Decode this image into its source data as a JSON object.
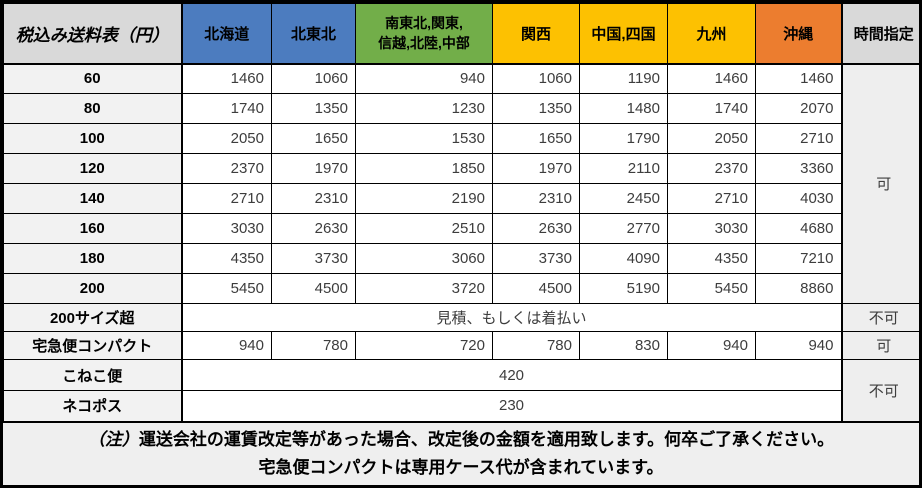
{
  "chart_data": {
    "type": "table",
    "title": "税込み送料表（円）",
    "region_columns": [
      {
        "label": "北海道",
        "bg": "#4C7CBF"
      },
      {
        "label": "北東北",
        "bg": "#4C7CBF"
      },
      {
        "label": "南東北,関東,\n信越,北陸,中部",
        "bg": "#72AE49"
      },
      {
        "label": "関西",
        "bg": "#FDC101"
      },
      {
        "label": "中国,四国",
        "bg": "#FDC101"
      },
      {
        "label": "九州",
        "bg": "#FDC101"
      },
      {
        "label": "沖縄",
        "bg": "#EC7D2F"
      }
    ],
    "time_column_label": "時間指定",
    "size_rows": [
      {
        "label": "60",
        "values": [
          1460,
          1060,
          940,
          1060,
          1190,
          1460,
          1460
        ]
      },
      {
        "label": "80",
        "values": [
          1740,
          1350,
          1230,
          1350,
          1480,
          1740,
          2070
        ]
      },
      {
        "label": "100",
        "values": [
          2050,
          1650,
          1530,
          1650,
          1790,
          2050,
          2710
        ]
      },
      {
        "label": "120",
        "values": [
          2370,
          1970,
          1850,
          1970,
          2110,
          2370,
          3360
        ]
      },
      {
        "label": "140",
        "values": [
          2710,
          2310,
          2190,
          2310,
          2450,
          2710,
          4030
        ]
      },
      {
        "label": "160",
        "values": [
          3030,
          2630,
          2510,
          2630,
          2770,
          3030,
          4680
        ]
      },
      {
        "label": "180",
        "values": [
          4350,
          3730,
          3060,
          3730,
          4090,
          4350,
          7210
        ]
      },
      {
        "label": "200",
        "values": [
          5450,
          4500,
          3720,
          4500,
          5190,
          5450,
          8860
        ]
      }
    ],
    "size_rows_time": "可",
    "special_rows": [
      {
        "label": "200サイズ超",
        "merged_value": "見積、もしくは着払い",
        "time": "不可",
        "time_rowspan": 1,
        "short": true
      },
      {
        "label": "宅急便コンパクト",
        "values": [
          940,
          780,
          720,
          780,
          830,
          940,
          940
        ],
        "time": "可",
        "time_rowspan": 1,
        "short": true
      },
      {
        "label": "こねこ便",
        "merged_value": "420",
        "time": "不可",
        "time_rowspan": 2,
        "tall": true
      },
      {
        "label": "ネコポス",
        "merged_value": "230",
        "tall": true
      }
    ],
    "notes": {
      "prefix": "（注）",
      "line1": "運送会社の運賃改定等があった場合、改定後の金額を適用致します。何卒ご了承ください。",
      "line2": "宅急便コンパクトは専用ケース代が含まれています。"
    },
    "colors": {
      "region_blue": "#4C7CBF",
      "region_green": "#72AE49",
      "region_yellow": "#FDC101",
      "region_orange": "#EC7D2F",
      "header_gray": "#D9D9D9",
      "row_label_gray": "#F2F2F2",
      "time_cell_gray": "#EEEEEE",
      "notes_gray": "#EFEFEF",
      "border": "#000000"
    }
  }
}
